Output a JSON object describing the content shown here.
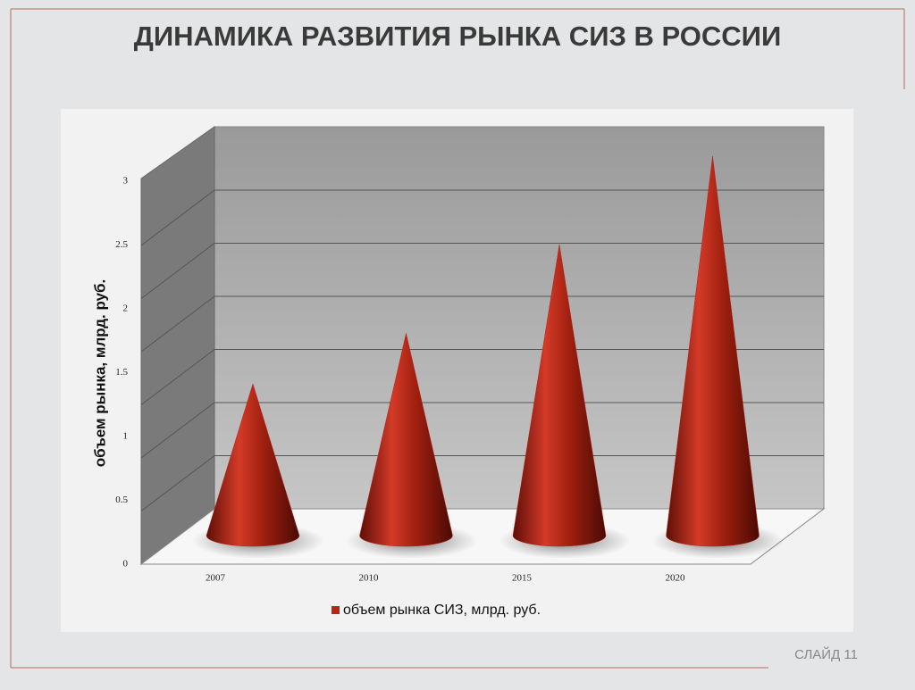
{
  "chart_data": {
    "type": "cone",
    "title": "ДИНАМИКА РАЗВИТИЯ РЫНКА СИЗ В РОССИИ",
    "y_label": "объем рынка, млрд. руб.",
    "categories": [
      "2007",
      "2010",
      "2015",
      "2020"
    ],
    "series": [
      {
        "name": "объем рынка СИЗ, млрд. руб.",
        "color": "#b3261b",
        "values": [
          1.2,
          1.6,
          2.3,
          3.0
        ]
      }
    ],
    "ylim": [
      0,
      3
    ],
    "yticks": [
      0,
      0.5,
      1,
      1.5,
      2,
      2.5,
      3
    ],
    "grid": true,
    "slide_number": "СЛАЙД 11"
  }
}
